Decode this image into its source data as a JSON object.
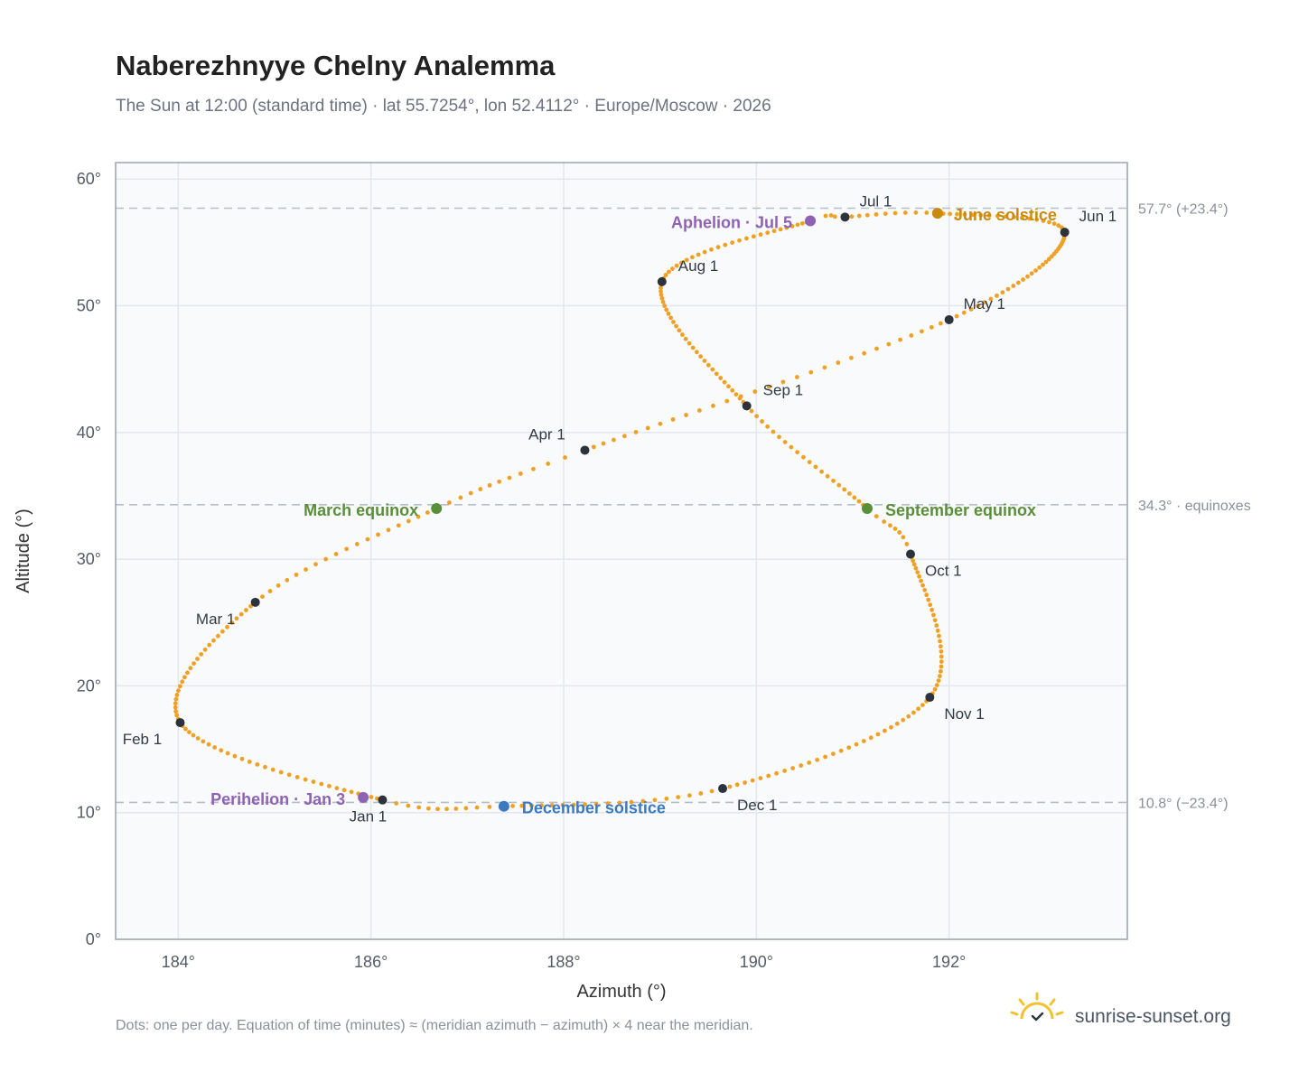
{
  "header": {
    "title": "Naberezhnyye Chelny Analemma",
    "subtitle": "The Sun at 12:00 (standard time) · lat 55.7254°, lon 52.4112° · Europe/Moscow · 2026"
  },
  "footer": {
    "note": "Dots: one per day. Equation of time (minutes) ≈ (meridian azimuth − azimuth) × 4 near the meridian.",
    "brand": "sunrise-sunset.org"
  },
  "colors": {
    "path": "#f0a024",
    "month": "#2d333d",
    "june": "#c98a0e",
    "december": "#3a7abf",
    "equinox": "#5a8f3a",
    "apsis": "#8e63b5",
    "plot_bg": "#f8fafc",
    "grid": "#e3e7ed",
    "frame": "#9aa3b0",
    "ref_line": "#b7bec8"
  },
  "chart_data": {
    "type": "scatter",
    "title": "Naberezhnyye Chelny Analemma",
    "xlabel": "Azimuth (°)",
    "ylabel": "Altitude (°)",
    "xlim": [
      183.35,
      193.85
    ],
    "ylim": [
      0,
      61.3
    ],
    "xticks": [
      184,
      186,
      188,
      190,
      192
    ],
    "xtick_labels": [
      "184°",
      "186°",
      "188°",
      "190°",
      "192°"
    ],
    "yticks": [
      0,
      10,
      20,
      30,
      40,
      50,
      60
    ],
    "ytick_labels": [
      "0°",
      "10°",
      "20°",
      "30°",
      "40°",
      "50°",
      "60°"
    ],
    "grid": true,
    "series": [
      {
        "name": "",
        "points_per": "day",
        "anchors": [
          {
            "doy": 1,
            "az": 186.12,
            "alt": 11.0
          },
          {
            "doy": 32,
            "az": 184.02,
            "alt": 17.1
          },
          {
            "doy": 60,
            "az": 184.8,
            "alt": 26.6
          },
          {
            "doy": 79,
            "az": 186.68,
            "alt": 34.0
          },
          {
            "doy": 91,
            "az": 188.22,
            "alt": 38.6
          },
          {
            "doy": 121,
            "az": 192.0,
            "alt": 48.9
          },
          {
            "doy": 152,
            "az": 193.2,
            "alt": 55.8
          },
          {
            "doy": 172,
            "az": 191.88,
            "alt": 57.3
          },
          {
            "doy": 182,
            "az": 190.92,
            "alt": 57.0
          },
          {
            "doy": 186,
            "az": 190.56,
            "alt": 56.7
          },
          {
            "doy": 213,
            "az": 189.02,
            "alt": 51.9
          },
          {
            "doy": 244,
            "az": 189.9,
            "alt": 42.1
          },
          {
            "doy": 266,
            "az": 191.15,
            "alt": 34.0
          },
          {
            "doy": 274,
            "az": 191.6,
            "alt": 30.4
          },
          {
            "doy": 305,
            "az": 191.8,
            "alt": 19.1
          },
          {
            "doy": 335,
            "az": 189.65,
            "alt": 11.9
          },
          {
            "doy": 355,
            "az": 187.38,
            "alt": 10.5
          },
          {
            "doy": 366,
            "az": 186.12,
            "alt": 11.0
          }
        ]
      }
    ],
    "month_markers": [
      {
        "label": "Jan 1",
        "az": 186.12,
        "alt": 11.0
      },
      {
        "label": "Feb 1",
        "az": 184.02,
        "alt": 17.1
      },
      {
        "label": "Mar 1",
        "az": 184.8,
        "alt": 26.6
      },
      {
        "label": "Apr 1",
        "az": 188.22,
        "alt": 38.6
      },
      {
        "label": "May 1",
        "az": 192.0,
        "alt": 48.9
      },
      {
        "label": "Jun 1",
        "az": 193.2,
        "alt": 55.8
      },
      {
        "label": "Jul 1",
        "az": 190.92,
        "alt": 57.0
      },
      {
        "label": "Aug 1",
        "az": 189.02,
        "alt": 51.9
      },
      {
        "label": "Sep 1",
        "az": 189.9,
        "alt": 42.1
      },
      {
        "label": "Oct 1",
        "az": 191.6,
        "alt": 30.4
      },
      {
        "label": "Nov 1",
        "az": 191.8,
        "alt": 19.1
      },
      {
        "label": "Dec 1",
        "az": 189.65,
        "alt": 11.9
      }
    ],
    "events": [
      {
        "label": "June solstice",
        "az": 191.88,
        "alt": 57.3,
        "color_key": "june"
      },
      {
        "label": "December solstice",
        "az": 187.38,
        "alt": 10.5,
        "color_key": "december"
      },
      {
        "label": "March equinox",
        "az": 186.68,
        "alt": 34.0,
        "color_key": "equinox"
      },
      {
        "label": "September equinox",
        "az": 191.15,
        "alt": 34.0,
        "color_key": "equinox"
      },
      {
        "label": "Aphelion · Jul 5",
        "az": 190.56,
        "alt": 56.7,
        "color_key": "apsis"
      },
      {
        "label": "Perihelion · Jan 3",
        "az": 185.92,
        "alt": 11.2,
        "color_key": "apsis"
      }
    ],
    "reference_lines": [
      {
        "alt": 57.7,
        "label": "57.7° (+23.4°)"
      },
      {
        "alt": 34.3,
        "label": "34.3° · equinoxes"
      },
      {
        "alt": 10.8,
        "label": "10.8° (−23.4°)"
      }
    ]
  }
}
